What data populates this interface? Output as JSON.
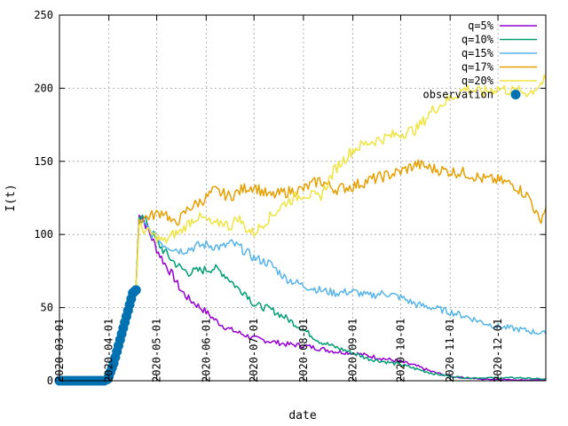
{
  "chart_data": {
    "type": "line",
    "xlabel": "date",
    "ylabel": "I(t)",
    "x_axis_type": "date",
    "xlim": [
      "2020-03-01",
      "2020-12-31"
    ],
    "ylim": [
      0,
      250
    ],
    "y_ticks": [
      "0",
      "50",
      "100",
      "150",
      "200",
      "250"
    ],
    "x_ticks": [
      "2020-03-01",
      "2020-04-01",
      "2020-05-01",
      "2020-06-01",
      "2020-07-01",
      "2020-08-01",
      "2020-09-01",
      "2020-10-01",
      "2020-11-01",
      "2020-12-01"
    ],
    "grid": true,
    "legend_position": "top-right",
    "series": [
      {
        "name": "q=5%",
        "color": "#9400d3",
        "points": [
          [
            "2020-04-20",
            116
          ],
          [
            "2020-04-25",
            105
          ],
          [
            "2020-05-01",
            90
          ],
          [
            "2020-05-06",
            80
          ],
          [
            "2020-05-11",
            72
          ],
          [
            "2020-05-16",
            62
          ],
          [
            "2020-05-21",
            56
          ],
          [
            "2020-05-26",
            52
          ],
          [
            "2020-06-01",
            47
          ],
          [
            "2020-06-06",
            42
          ],
          [
            "2020-06-11",
            38
          ],
          [
            "2020-06-16",
            35
          ],
          [
            "2020-06-21",
            33
          ],
          [
            "2020-06-26",
            31
          ],
          [
            "2020-07-01",
            29
          ],
          [
            "2020-07-11",
            27
          ],
          [
            "2020-07-21",
            25
          ],
          [
            "2020-08-01",
            24
          ],
          [
            "2020-08-11",
            22
          ],
          [
            "2020-08-21",
            20
          ],
          [
            "2020-09-01",
            19
          ],
          [
            "2020-09-11",
            17
          ],
          [
            "2020-09-21",
            15
          ],
          [
            "2020-10-01",
            13
          ],
          [
            "2020-10-11",
            10
          ],
          [
            "2020-10-21",
            6
          ],
          [
            "2020-11-01",
            3
          ],
          [
            "2020-11-11",
            2
          ],
          [
            "2020-11-21",
            1
          ],
          [
            "2020-12-01",
            1
          ],
          [
            "2020-12-15",
            0.5
          ],
          [
            "2020-12-31",
            0.5
          ]
        ]
      },
      {
        "name": "q=10%",
        "color": "#009e73",
        "points": [
          [
            "2020-04-20",
            114
          ],
          [
            "2020-04-25",
            108
          ],
          [
            "2020-05-01",
            95
          ],
          [
            "2020-05-06",
            88
          ],
          [
            "2020-05-11",
            82
          ],
          [
            "2020-05-16",
            77
          ],
          [
            "2020-05-21",
            74
          ],
          [
            "2020-05-26",
            75
          ],
          [
            "2020-06-01",
            76
          ],
          [
            "2020-06-06",
            77
          ],
          [
            "2020-06-11",
            74
          ],
          [
            "2020-06-16",
            69
          ],
          [
            "2020-06-21",
            63
          ],
          [
            "2020-06-26",
            60
          ],
          [
            "2020-07-01",
            52
          ],
          [
            "2020-07-11",
            49
          ],
          [
            "2020-07-21",
            43
          ],
          [
            "2020-08-01",
            35
          ],
          [
            "2020-08-11",
            27
          ],
          [
            "2020-08-21",
            23
          ],
          [
            "2020-09-01",
            19
          ],
          [
            "2020-09-11",
            15
          ],
          [
            "2020-09-21",
            13
          ],
          [
            "2020-10-01",
            11
          ],
          [
            "2020-10-11",
            8
          ],
          [
            "2020-10-21",
            5
          ],
          [
            "2020-11-01",
            3
          ],
          [
            "2020-11-11",
            2
          ],
          [
            "2020-11-21",
            2
          ],
          [
            "2020-12-01",
            2
          ],
          [
            "2020-12-15",
            2
          ],
          [
            "2020-12-31",
            1
          ]
        ]
      },
      {
        "name": "q=15%",
        "color": "#56b4e9",
        "points": [
          [
            "2020-04-20",
            110
          ],
          [
            "2020-04-25",
            104
          ],
          [
            "2020-05-01",
            97
          ],
          [
            "2020-05-06",
            93
          ],
          [
            "2020-05-11",
            91
          ],
          [
            "2020-05-16",
            89
          ],
          [
            "2020-05-21",
            90
          ],
          [
            "2020-05-26",
            92
          ],
          [
            "2020-06-01",
            93
          ],
          [
            "2020-06-06",
            92
          ],
          [
            "2020-06-11",
            91
          ],
          [
            "2020-06-16",
            94
          ],
          [
            "2020-06-21",
            92
          ],
          [
            "2020-06-26",
            88
          ],
          [
            "2020-07-01",
            84
          ],
          [
            "2020-07-11",
            80
          ],
          [
            "2020-07-21",
            70
          ],
          [
            "2020-08-01",
            65
          ],
          [
            "2020-08-11",
            62
          ],
          [
            "2020-08-21",
            60
          ],
          [
            "2020-09-01",
            61
          ],
          [
            "2020-09-11",
            58
          ],
          [
            "2020-09-21",
            60
          ],
          [
            "2020-10-01",
            57
          ],
          [
            "2020-10-11",
            52
          ],
          [
            "2020-10-21",
            50
          ],
          [
            "2020-11-01",
            47
          ],
          [
            "2020-11-11",
            44
          ],
          [
            "2020-11-21",
            40
          ],
          [
            "2020-12-01",
            37
          ],
          [
            "2020-12-15",
            35
          ],
          [
            "2020-12-31",
            32
          ]
        ]
      },
      {
        "name": "q=17%",
        "color": "#e69f00",
        "points": [
          [
            "2020-04-20",
            110
          ],
          [
            "2020-04-25",
            112
          ],
          [
            "2020-05-01",
            114
          ],
          [
            "2020-05-06",
            116
          ],
          [
            "2020-05-11",
            107
          ],
          [
            "2020-05-16",
            111
          ],
          [
            "2020-05-21",
            118
          ],
          [
            "2020-05-26",
            121
          ],
          [
            "2020-06-01",
            125
          ],
          [
            "2020-06-06",
            130
          ],
          [
            "2020-06-11",
            128
          ],
          [
            "2020-06-16",
            126
          ],
          [
            "2020-06-21",
            129
          ],
          [
            "2020-06-26",
            132
          ],
          [
            "2020-07-01",
            133
          ],
          [
            "2020-07-11",
            126
          ],
          [
            "2020-07-21",
            129
          ],
          [
            "2020-08-01",
            131
          ],
          [
            "2020-08-11",
            137
          ],
          [
            "2020-08-21",
            131
          ],
          [
            "2020-09-01",
            133
          ],
          [
            "2020-09-11",
            137
          ],
          [
            "2020-09-21",
            140
          ],
          [
            "2020-10-01",
            143
          ],
          [
            "2020-10-11",
            148
          ],
          [
            "2020-10-21",
            145
          ],
          [
            "2020-11-01",
            143
          ],
          [
            "2020-11-11",
            142
          ],
          [
            "2020-11-21",
            138
          ],
          [
            "2020-12-01",
            137
          ],
          [
            "2020-12-11",
            134
          ],
          [
            "2020-12-21",
            125
          ],
          [
            "2020-12-27",
            109
          ],
          [
            "2020-12-31",
            118
          ]
        ]
      },
      {
        "name": "q=20%",
        "color": "#f0e442",
        "points": [
          [
            "2020-04-20",
            105
          ],
          [
            "2020-04-25",
            102
          ],
          [
            "2020-05-01",
            98
          ],
          [
            "2020-05-06",
            95
          ],
          [
            "2020-05-11",
            100
          ],
          [
            "2020-05-16",
            102
          ],
          [
            "2020-05-21",
            108
          ],
          [
            "2020-05-26",
            112
          ],
          [
            "2020-06-01",
            110
          ],
          [
            "2020-06-06",
            106
          ],
          [
            "2020-06-11",
            109
          ],
          [
            "2020-06-16",
            105
          ],
          [
            "2020-06-21",
            112
          ],
          [
            "2020-06-26",
            104
          ],
          [
            "2020-07-01",
            101
          ],
          [
            "2020-07-11",
            112
          ],
          [
            "2020-07-21",
            122
          ],
          [
            "2020-08-01",
            128
          ],
          [
            "2020-08-11",
            125
          ],
          [
            "2020-08-21",
            145
          ],
          [
            "2020-09-01",
            158
          ],
          [
            "2020-09-11",
            163
          ],
          [
            "2020-09-21",
            166
          ],
          [
            "2020-10-01",
            169
          ],
          [
            "2020-10-11",
            172
          ],
          [
            "2020-10-21",
            185
          ],
          [
            "2020-11-01",
            193
          ],
          [
            "2020-11-11",
            200
          ],
          [
            "2020-11-21",
            197
          ],
          [
            "2020-12-01",
            200
          ],
          [
            "2020-12-11",
            198
          ],
          [
            "2020-12-21",
            197
          ],
          [
            "2020-12-31",
            206
          ]
        ]
      },
      {
        "name": "observation",
        "color": "#0072b2",
        "type": "scatter",
        "points": [
          [
            "2020-03-01",
            0
          ],
          [
            "2020-03-03",
            0
          ],
          [
            "2020-03-05",
            0
          ],
          [
            "2020-03-07",
            0
          ],
          [
            "2020-03-09",
            0
          ],
          [
            "2020-03-11",
            0
          ],
          [
            "2020-03-13",
            0
          ],
          [
            "2020-03-15",
            0
          ],
          [
            "2020-03-17",
            0
          ],
          [
            "2020-03-19",
            0
          ],
          [
            "2020-03-21",
            0
          ],
          [
            "2020-03-23",
            0
          ],
          [
            "2020-03-25",
            0
          ],
          [
            "2020-03-27",
            0
          ],
          [
            "2020-03-29",
            0
          ],
          [
            "2020-03-31",
            1
          ],
          [
            "2020-04-01",
            3
          ],
          [
            "2020-04-02",
            6
          ],
          [
            "2020-04-03",
            9
          ],
          [
            "2020-04-04",
            12
          ],
          [
            "2020-04-05",
            16
          ],
          [
            "2020-04-06",
            20
          ],
          [
            "2020-04-07",
            24
          ],
          [
            "2020-04-08",
            28
          ],
          [
            "2020-04-09",
            32
          ],
          [
            "2020-04-10",
            36
          ],
          [
            "2020-04-11",
            40
          ],
          [
            "2020-04-12",
            44
          ],
          [
            "2020-04-13",
            48
          ],
          [
            "2020-04-14",
            52
          ],
          [
            "2020-04-15",
            56
          ],
          [
            "2020-04-16",
            60
          ],
          [
            "2020-04-17",
            61
          ],
          [
            "2020-04-18",
            62
          ]
        ]
      }
    ]
  }
}
